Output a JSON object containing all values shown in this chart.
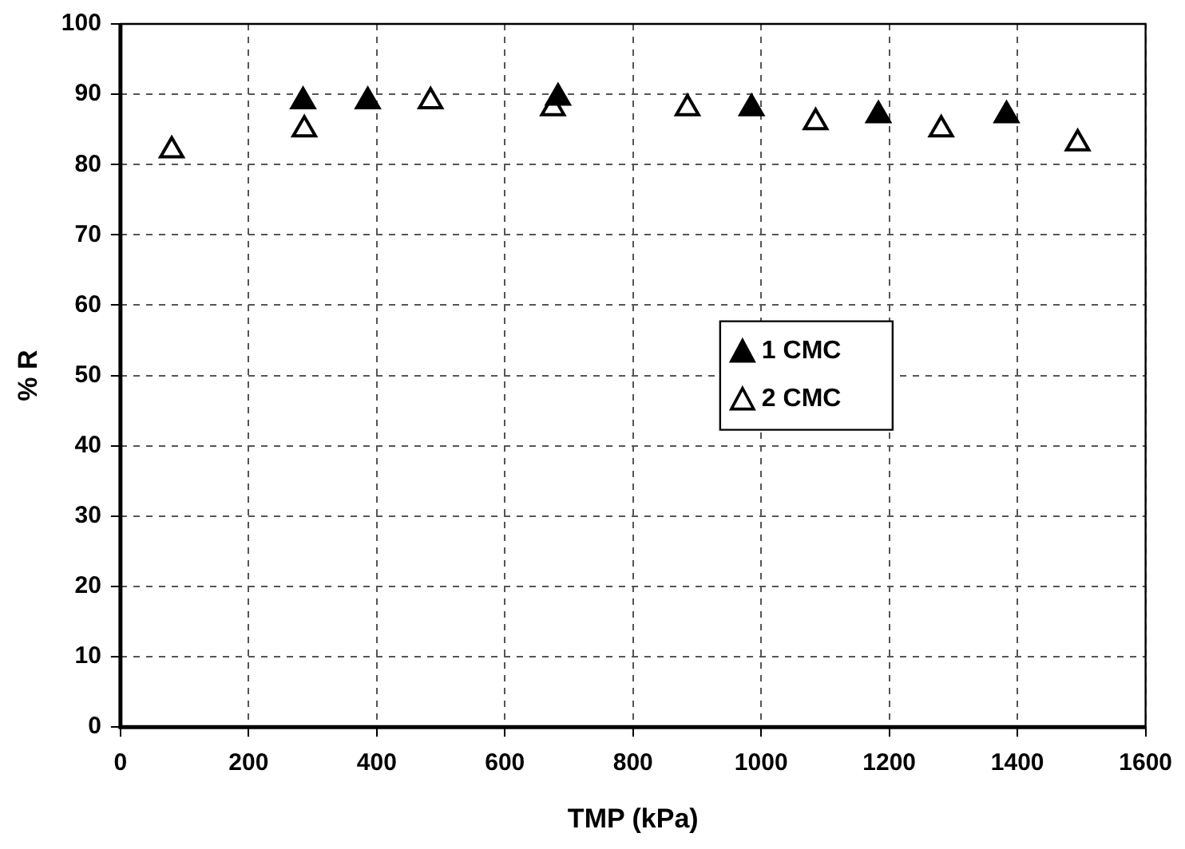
{
  "chart_data": {
    "type": "scatter",
    "xlabel": "TMP (kPa)",
    "ylabel": "% R",
    "xlim": [
      0,
      1600
    ],
    "xticks": [
      0,
      200,
      400,
      600,
      800,
      1000,
      1200,
      1400,
      1600
    ],
    "ylim": [
      0,
      100
    ],
    "yticks": [
      0,
      10,
      20,
      30,
      40,
      50,
      60,
      70,
      80,
      90,
      100
    ],
    "grid": true,
    "legend": "right",
    "marker": "triangle",
    "series": [
      {
        "name": "1 CMC",
        "color": "#000000",
        "x": [
          285,
          386,
          683,
          985,
          1183,
          1383
        ],
        "values": [
          89,
          89,
          89.5,
          88,
          87,
          87
        ]
      },
      {
        "name": "2 CMC",
        "color": "#ffffff",
        "x": [
          80,
          287,
          484,
          675,
          885,
          1085,
          1281,
          1494
        ],
        "values": [
          82,
          85,
          89,
          88,
          88,
          86,
          85,
          83
        ]
      }
    ]
  }
}
